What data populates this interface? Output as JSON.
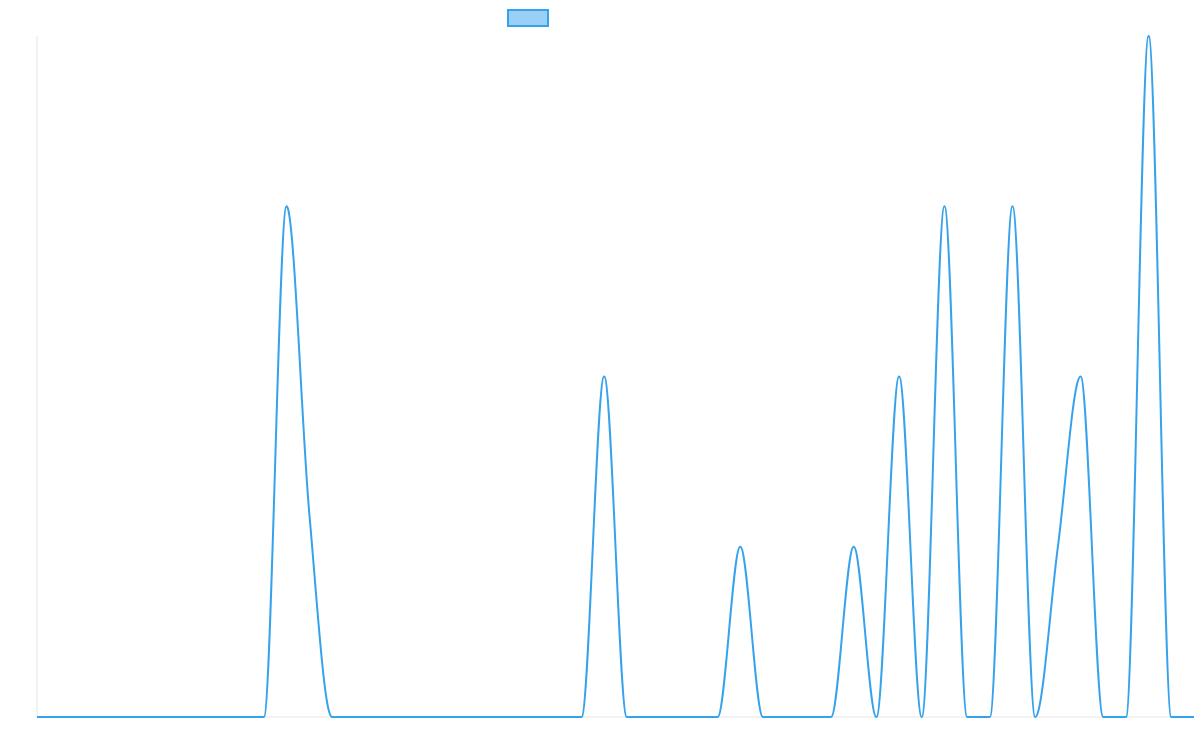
{
  "chart_data": {
    "type": "line",
    "title": "",
    "xlabel": "",
    "ylabel": "",
    "grid": false,
    "legend_position": "top",
    "x": [
      0,
      10,
      11,
      12,
      13,
      14,
      24,
      25,
      26,
      30,
      31,
      32,
      35,
      36,
      37,
      38,
      39,
      40,
      41,
      42,
      43,
      44,
      45,
      46,
      47,
      48,
      49,
      50,
      51
    ],
    "xlim": [
      0,
      51
    ],
    "ylim": [
      0,
      4
    ],
    "series": [
      {
        "name": "",
        "color": "#36a2eb",
        "fill": "#9ad0f5",
        "values": [
          0,
          0,
          3,
          1.2,
          0,
          0,
          0,
          2,
          0,
          0,
          1,
          0,
          0,
          1,
          0,
          2,
          0,
          3,
          0,
          0,
          3,
          0,
          1,
          2,
          0,
          0,
          4,
          0,
          0
        ]
      }
    ]
  }
}
